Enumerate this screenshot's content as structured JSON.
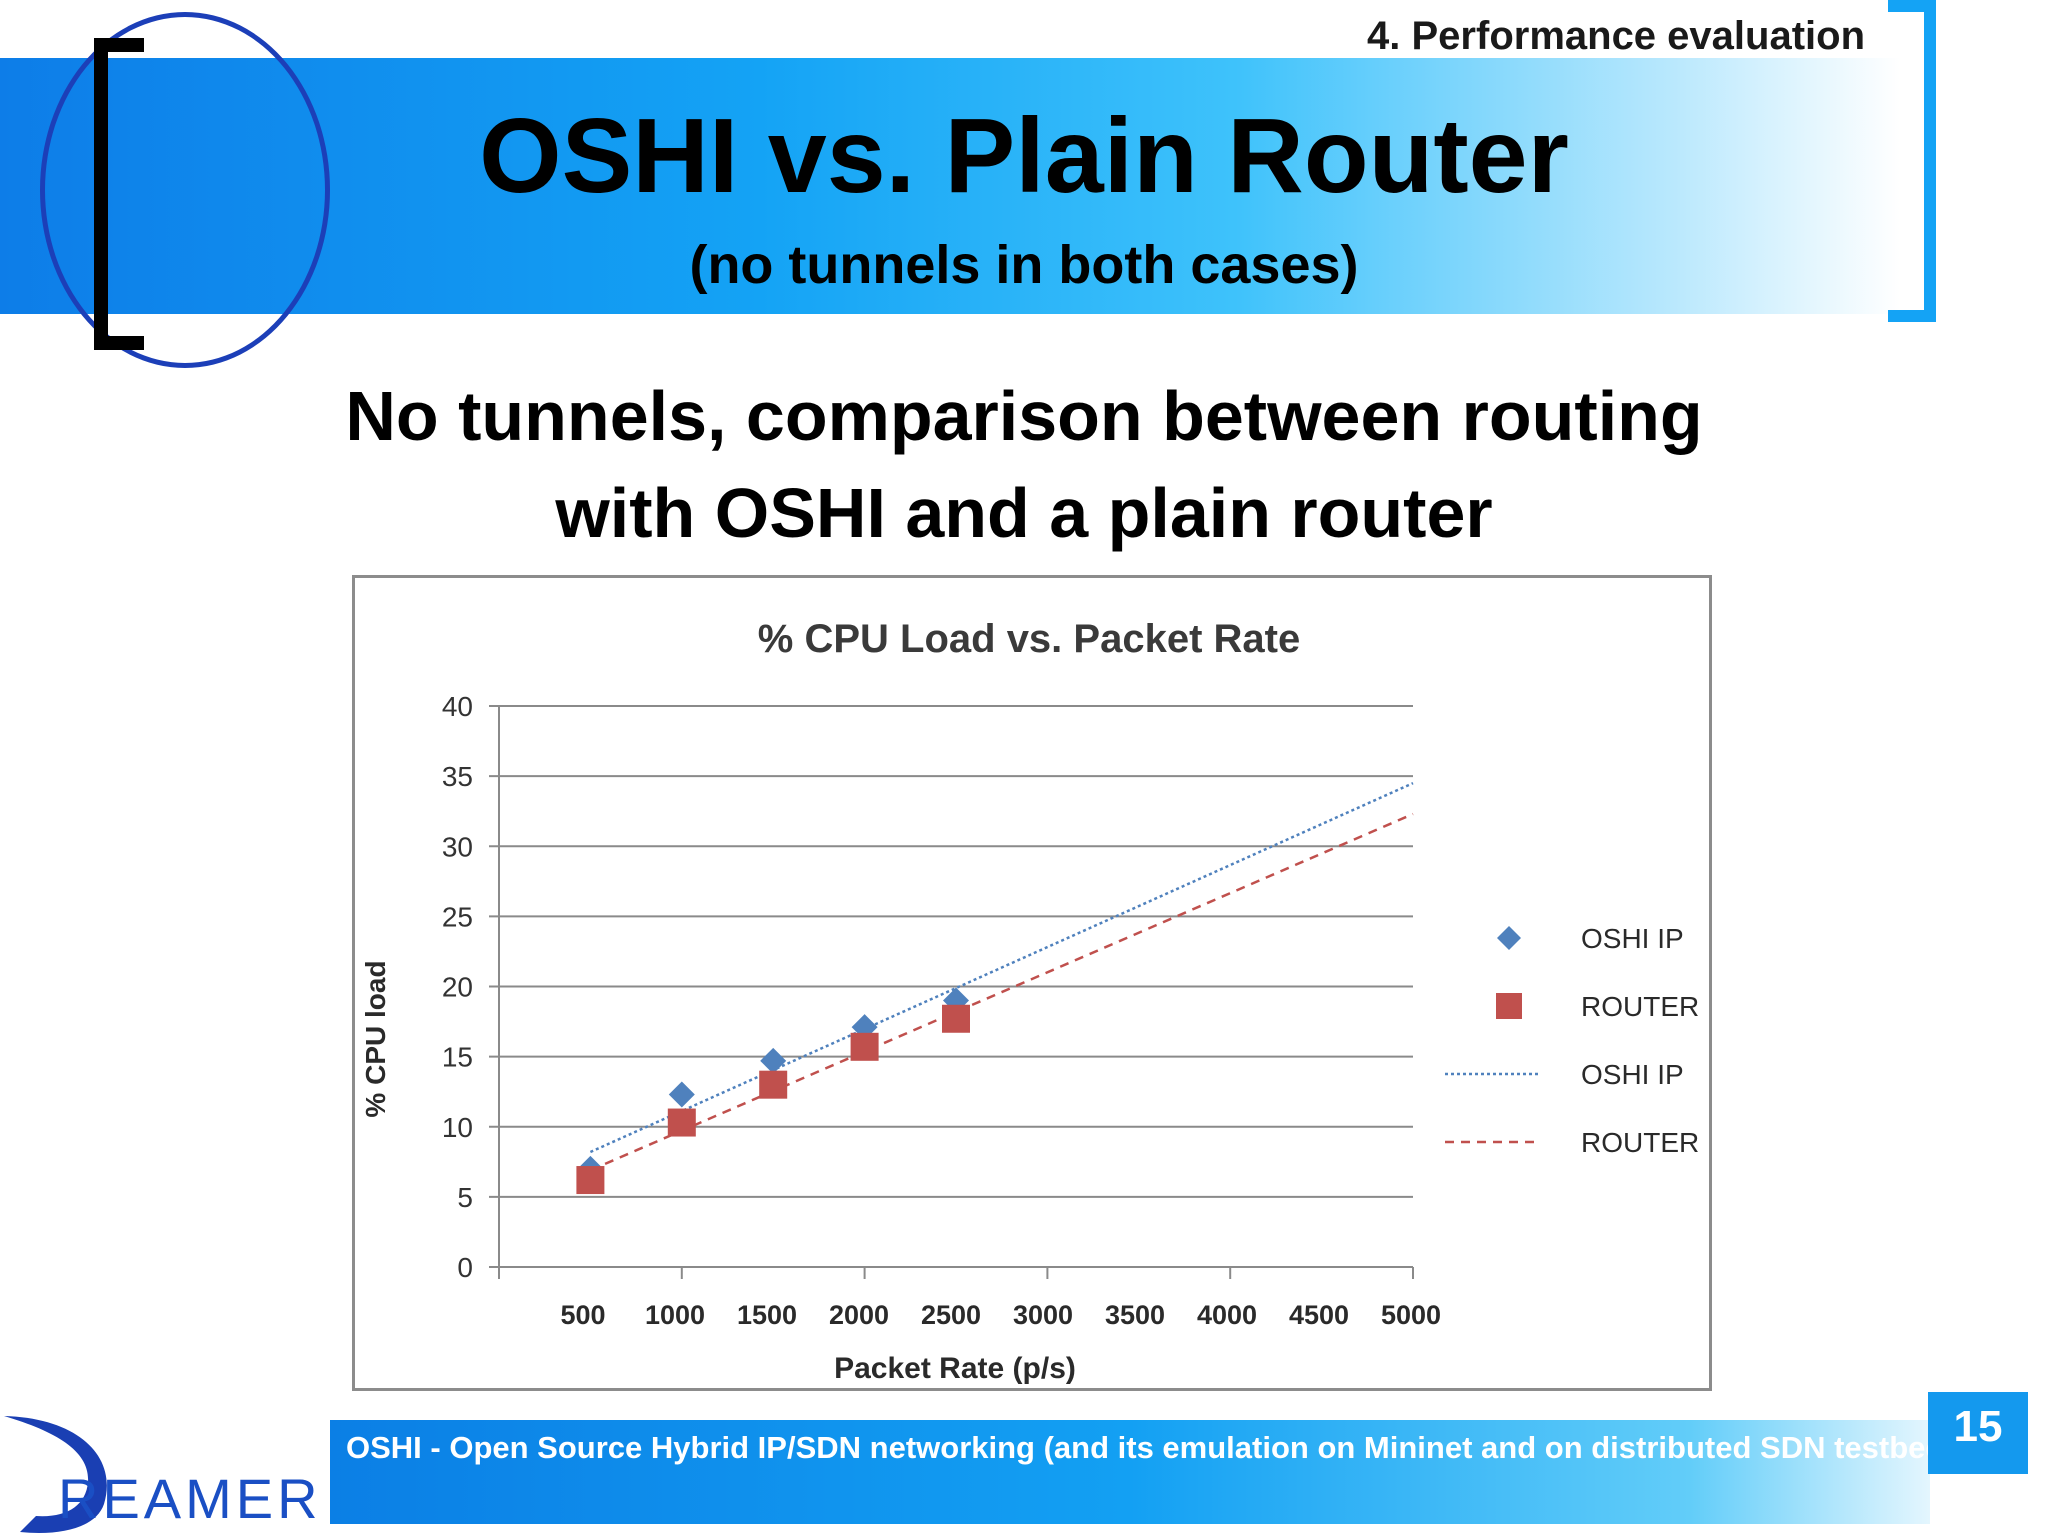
{
  "header": {
    "section": "4. Performance evaluation",
    "title": "OSHI vs. Plain Router",
    "subtitle": "(no tunnels in both cases)"
  },
  "headline": {
    "line1": "No tunnels, comparison between routing",
    "line2": "with OSHI and a plain router"
  },
  "colors": {
    "oshi": "#4f81bd",
    "router": "#c0504d",
    "header_blue": "#14a3f5",
    "logo_blue": "#1c3fb8"
  },
  "chart_data": {
    "type": "scatter",
    "title": "% CPU Load vs. Packet Rate",
    "xlabel": "Packet Rate (p/s)",
    "ylabel": "% CPU load",
    "xlim": [
      0,
      5000
    ],
    "ylim": [
      0,
      40
    ],
    "xticks": [
      500,
      1000,
      1500,
      2000,
      2500,
      3000,
      3500,
      4000,
      4500,
      5000
    ],
    "yticks": [
      0,
      5,
      10,
      15,
      20,
      25,
      30,
      35,
      40
    ],
    "grid": true,
    "legend_position": "right",
    "series": [
      {
        "name": "OSHI IP",
        "marker": "diamond",
        "x": [
          500,
          1000,
          1500,
          2000,
          2500
        ],
        "values": [
          7.0,
          12.3,
          14.7,
          17.1,
          19.0
        ]
      },
      {
        "name": "ROUTER IP",
        "marker": "square",
        "x": [
          500,
          1000,
          1500,
          2000,
          2500
        ],
        "values": [
          6.2,
          10.3,
          13.0,
          15.7,
          17.7
        ]
      }
    ],
    "trendlines": [
      {
        "name": "OSHI IP",
        "style": "dotted",
        "x": [
          500,
          5000
        ],
        "values": [
          8.2,
          34.5
        ]
      },
      {
        "name": "ROUTER IP",
        "style": "dashed",
        "x": [
          500,
          5000
        ],
        "values": [
          6.9,
          32.3
        ]
      }
    ]
  },
  "footer": {
    "text": "OSHI - Open Source Hybrid IP/SDN networking (and its emulation on Mininet and on distributed SDN testbeds)",
    "page": "15",
    "logo": "REAMER"
  }
}
